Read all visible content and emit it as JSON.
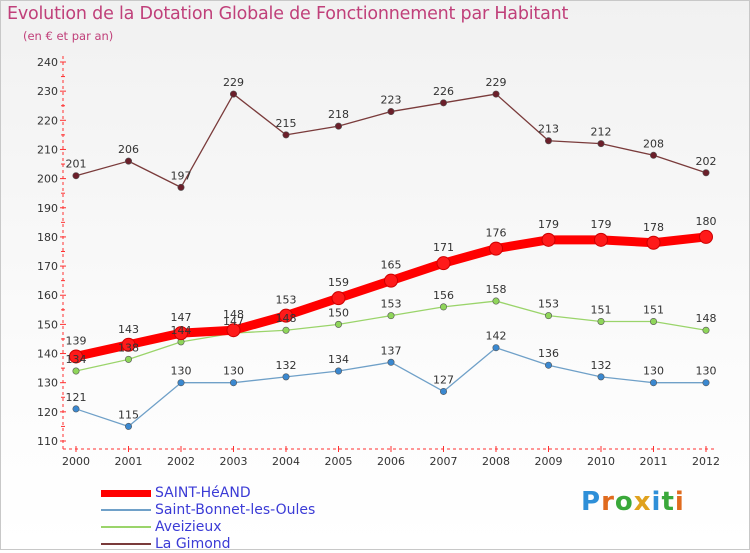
{
  "title": "Evolution de la Dotation Globale de Fonctionnement par Habitant",
  "subtitle": "(en € et par an)",
  "logo": {
    "text": "Proxiti",
    "letters": [
      "P",
      "r",
      "o",
      "x",
      "i",
      "t",
      "i"
    ],
    "colors": [
      "#2e8fd8",
      "#e06b1e",
      "#3aa83a",
      "#e0a21e",
      "#2e8fd8",
      "#3aa83a",
      "#e06b1e"
    ]
  },
  "chart_data": {
    "type": "line",
    "title": "Evolution de la Dotation Globale de Fonctionnement par Habitant",
    "ylabel": "(en € et par an)",
    "xlabel": "",
    "x": [
      "2000",
      "2001",
      "2002",
      "2003",
      "2004",
      "2005",
      "2006",
      "2007",
      "2008",
      "2009",
      "2010",
      "2011",
      "2012"
    ],
    "ylim": [
      110,
      240
    ],
    "ytick_step": 10,
    "yticks": [
      "110",
      "120",
      "130",
      "140",
      "150",
      "160",
      "170",
      "180",
      "190",
      "200",
      "210",
      "220",
      "230",
      "240"
    ],
    "grid": false,
    "legend_position": "bottom-left",
    "series": [
      {
        "name": "SAINT-HéAND",
        "color": "#ff0000",
        "emphasis": true,
        "values": [
          139,
          143,
          147,
          148,
          153,
          159,
          165,
          171,
          176,
          179,
          179,
          178,
          180
        ],
        "labels": [
          "139",
          "143",
          "147",
          "148",
          "153",
          "159",
          "165",
          "171",
          "176",
          "179",
          "179",
          "178",
          "180"
        ]
      },
      {
        "name": "Saint-Bonnet-les-Oules",
        "color": "#6fa0c8",
        "marker": "#3a88d0",
        "values": [
          121,
          115,
          130,
          130,
          132,
          134,
          137,
          127,
          142,
          136,
          132,
          130,
          130
        ],
        "labels": [
          "121",
          "115",
          "130",
          "130",
          "132",
          "134",
          "137",
          "127",
          "142",
          "136",
          "132",
          "130",
          "130"
        ]
      },
      {
        "name": "Aveizieux",
        "color": "#9ad46a",
        "marker": "#8fd65a",
        "values": [
          134,
          138,
          144,
          147,
          148,
          150,
          153,
          156,
          158,
          153,
          151,
          151,
          148
        ],
        "labels": [
          "134",
          "138",
          "144",
          "147",
          "148",
          "150",
          "153",
          "156",
          "158",
          "153",
          "151",
          "151",
          "148"
        ]
      },
      {
        "name": "La Gimond",
        "color": "#7a3b3b",
        "marker": "#6b1f2a",
        "values": [
          201,
          206,
          197,
          229,
          215,
          218,
          223,
          226,
          229,
          213,
          212,
          208,
          202
        ],
        "labels": [
          "201",
          "206",
          "197",
          "229",
          "215",
          "218",
          "223",
          "226",
          "229",
          "213",
          "212",
          "208",
          "202"
        ]
      }
    ]
  }
}
